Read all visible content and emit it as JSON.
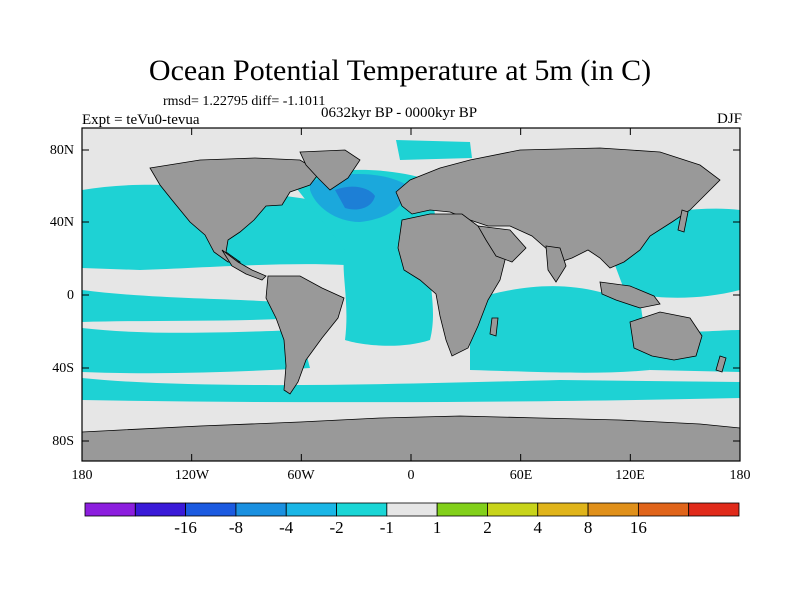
{
  "title": "Ocean Potential Temperature at 5m (in C)",
  "stats": "rmsd= 1.22795  diff= -1.1011",
  "experiment": "Expt = teVu0-tevua",
  "period": "0632kyr BP - 0000kyr BP",
  "season": "DJF",
  "map": {
    "lat_ticks": [
      "80N",
      "40N",
      "0",
      "40S",
      "80S"
    ],
    "lon_ticks": [
      "180",
      "120W",
      "60W",
      "0",
      "60E",
      "120E",
      "180"
    ],
    "colors": {
      "land": "#999999",
      "neutral": "#e6e6e6",
      "cool": "#1ed2d4",
      "cooler": "#1ba8dc",
      "coolest": "#1d7fd6"
    }
  },
  "colorbar": {
    "labels": [
      "-16",
      "-8",
      "-4",
      "-2",
      "-1",
      "1",
      "2",
      "4",
      "8",
      "16"
    ],
    "colors": [
      "#8c1ede",
      "#3a1ad8",
      "#1b5ae0",
      "#1a90e0",
      "#1ab6e6",
      "#1ad6d6",
      "#e6e6e6",
      "#82d01a",
      "#c8d41a",
      "#e0b41a",
      "#e0901a",
      "#e0641a",
      "#e02a1a"
    ]
  }
}
